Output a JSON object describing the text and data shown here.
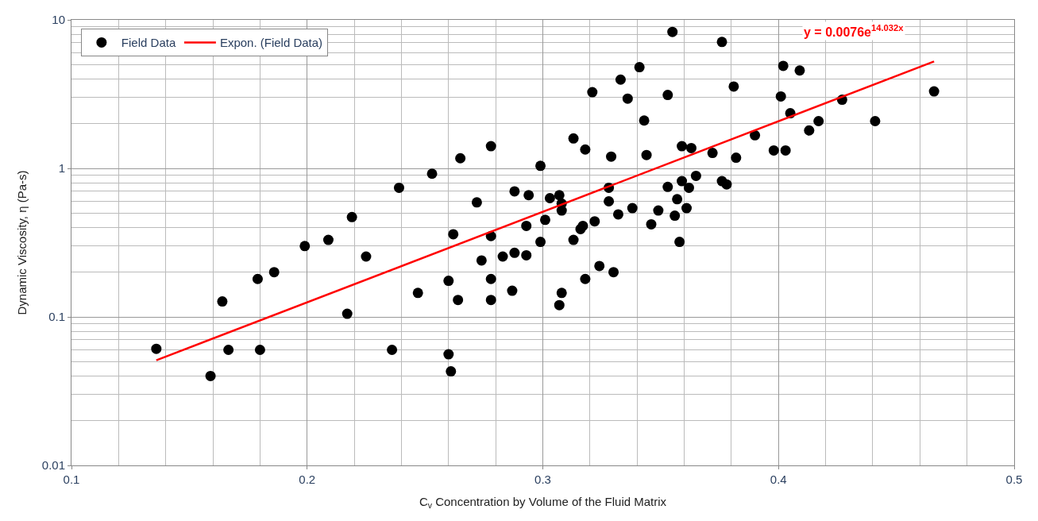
{
  "chart_data": {
    "type": "scatter",
    "xlabel": "C$_{v}$ Concentration by Volume of the Fluid Matrix",
    "ylabel": "Dynamic Viscosity, η (Pa-s)",
    "log": "y",
    "grid": true,
    "legend": "top left",
    "marker": "circle",
    "xlim": [
      0.1,
      0.5
    ],
    "xticks": [
      0.1,
      0.2,
      0.3,
      0.4,
      0.5
    ],
    "ylim": [
      0.01,
      10
    ],
    "yticks": [
      0.01,
      0.1,
      1,
      10
    ],
    "annotations": [
      "y = 0.0076e$^{14.032x}$"
    ],
    "series": [
      {
        "name": "Field Data",
        "color": "#000000",
        "x": [
          0.136,
          0.1666,
          0.164,
          0.159,
          0.179,
          0.18,
          0.186,
          0.199,
          0.209,
          0.217,
          0.219,
          0.225,
          0.236,
          0.239,
          0.247,
          0.253,
          0.26,
          0.26,
          0.261,
          0.262,
          0.265,
          0.264,
          0.272,
          0.274,
          0.278,
          0.278,
          0.278,
          0.278,
          0.283,
          0.288,
          0.288,
          0.287,
          0.293,
          0.293,
          0.294,
          0.299,
          0.299,
          0.301,
          0.303,
          0.307,
          0.308,
          0.308,
          0.307,
          0.308,
          0.313,
          0.313,
          0.316,
          0.317,
          0.318,
          0.318,
          0.321,
          0.322,
          0.324,
          0.328,
          0.328,
          0.329,
          0.33,
          0.332,
          0.333,
          0.336,
          0.338,
          0.341,
          0.343,
          0.344,
          0.346,
          0.349,
          0.353,
          0.353,
          0.355,
          0.356,
          0.357,
          0.358,
          0.359,
          0.359,
          0.361,
          0.362,
          0.363,
          0.365,
          0.372,
          0.376,
          0.376,
          0.378,
          0.381,
          0.382,
          0.39,
          0.398,
          0.401,
          0.402,
          0.403,
          0.405,
          0.409,
          0.413,
          0.417,
          0.427,
          0.441,
          0.466
        ],
        "values": [
          0.061,
          0.06,
          0.127,
          0.04,
          0.18,
          0.06,
          0.2,
          0.3,
          0.33,
          0.105,
          0.47,
          0.255,
          0.06,
          0.74,
          0.145,
          0.92,
          0.175,
          0.056,
          0.043,
          0.36,
          1.17,
          0.13,
          0.59,
          0.24,
          1.41,
          0.35,
          0.18,
          0.13,
          0.255,
          0.7,
          0.27,
          0.15,
          0.26,
          0.41,
          0.66,
          1.04,
          0.32,
          0.45,
          0.63,
          0.66,
          0.58,
          0.52,
          0.12,
          0.145,
          1.59,
          0.33,
          0.39,
          0.41,
          0.18,
          1.34,
          3.26,
          0.44,
          0.22,
          0.74,
          0.6,
          1.2,
          0.2,
          0.49,
          3.96,
          2.95,
          0.54,
          4.8,
          2.1,
          1.23,
          0.42,
          0.52,
          0.75,
          3.12,
          8.3,
          0.48,
          0.62,
          0.32,
          1.41,
          0.82,
          0.54,
          0.74,
          1.37,
          0.89,
          1.27,
          7.1,
          0.82,
          0.78,
          3.56,
          1.18,
          1.67,
          1.32,
          3.05,
          4.9,
          1.32,
          2.35,
          4.56,
          1.8,
          2.08,
          2.9,
          2.08,
          3.3
        ]
      },
      {
        "name": "Expon. (Field Data)",
        "type": "line",
        "color": "#ff0000",
        "marker": "none",
        "line_style": "solid",
        "x": [
          0.136,
          0.466
        ],
        "values": [
          0.051,
          5.25
        ]
      }
    ]
  }
}
